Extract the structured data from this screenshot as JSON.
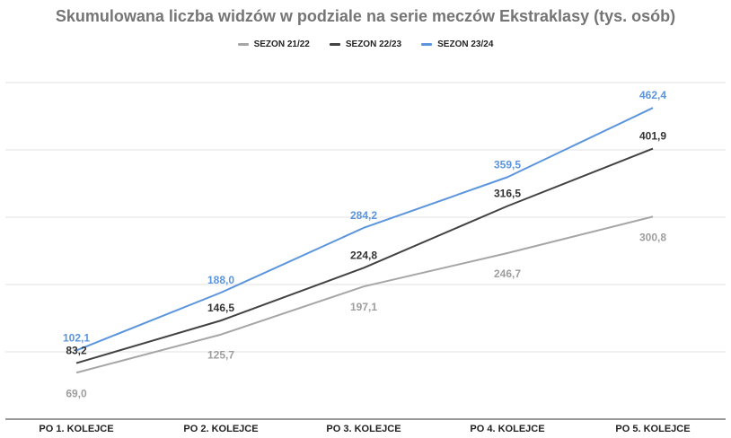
{
  "chart_data": {
    "type": "line",
    "title": "Skumulowana liczba widzów w podziale na serie meczów Ekstraklasy (tys. osób)",
    "categories": [
      "PO 1. KOLEJCE",
      "PO 2. KOLEJCE",
      "PO 3. KOLEJCE",
      "PO 4. KOLEJCE",
      "PO 5. KOLEJCE"
    ],
    "series": [
      {
        "name": "SEZON 21/22",
        "color": "#a6a6a6",
        "values": [
          69.0,
          125.7,
          197.1,
          246.7,
          300.8
        ],
        "labels": [
          "69,0",
          "125,7",
          "197,1",
          "246,7",
          "300,8"
        ]
      },
      {
        "name": "SEZON 22/23",
        "color": "#424242",
        "values": [
          83.2,
          146.5,
          224.8,
          316.5,
          401.9
        ],
        "labels": [
          "83,2",
          "146,5",
          "224,8",
          "316,5",
          "401,9"
        ]
      },
      {
        "name": "SEZON 23/24",
        "color": "#5b95de",
        "values": [
          102.1,
          188.0,
          284.2,
          359.5,
          462.4
        ],
        "labels": [
          "102,1",
          "188,0",
          "284,2",
          "359,5",
          "462,4"
        ]
      }
    ],
    "ylim": [
      0,
      500
    ],
    "grid": true,
    "legend_position": "top"
  }
}
